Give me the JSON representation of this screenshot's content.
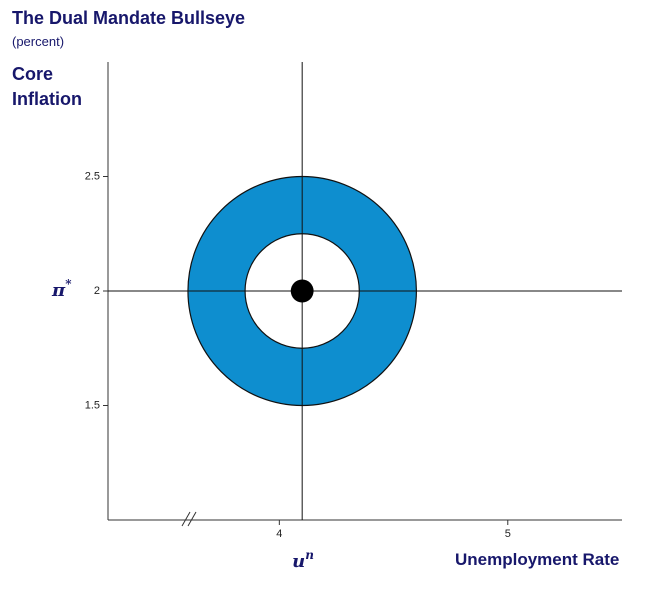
{
  "chart_data": {
    "type": "bullseye",
    "title": "The Dual Mandate Bullseye",
    "subtitle": "(percent)",
    "y_label": "Core Inflation",
    "x_label": "Unemployment Rate",
    "x_target": {
      "symbol": "u",
      "sup": "n"
    },
    "y_target": {
      "symbol": "π",
      "sup": "*"
    },
    "center": {
      "x": 4.1,
      "y": 2
    },
    "outer_radius": 0.5,
    "inner_radius": 0.25,
    "dot_radius": 0.05,
    "ring_color": "#0e8ecf",
    "xlim": [
      3.25,
      5.5
    ],
    "ylim": [
      1,
      3
    ],
    "xticks": [
      4,
      5
    ],
    "yticks": [
      1.5,
      2,
      2.5
    ]
  }
}
